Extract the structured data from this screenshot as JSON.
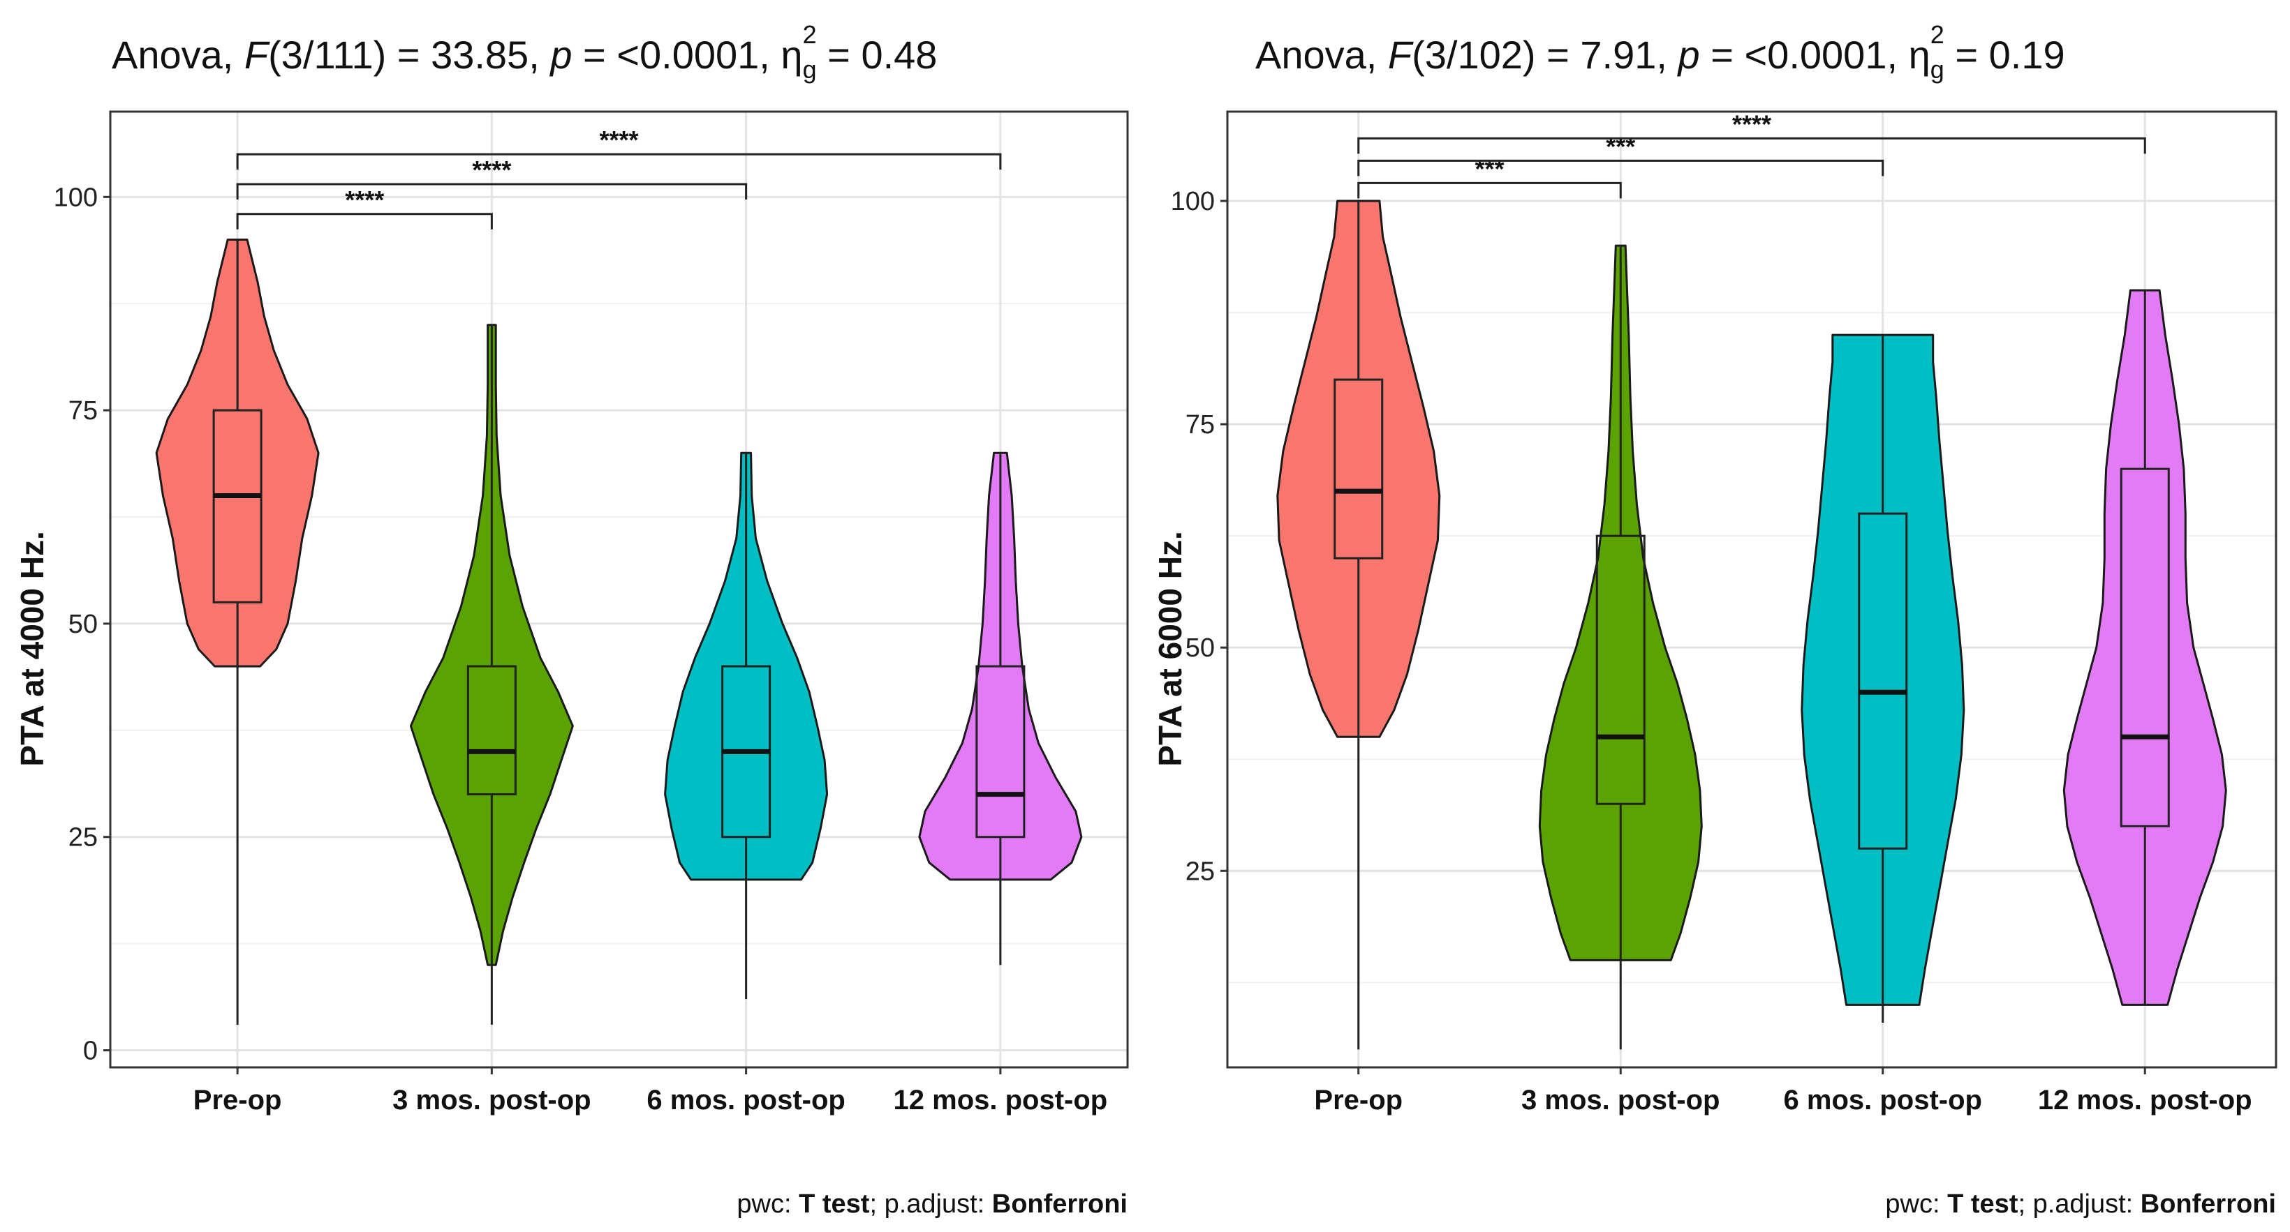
{
  "chart_data": [
    {
      "type": "violin",
      "title": "Anova, F(3/111) = 33.85, p = <0.0001, ηg2 = 0.48",
      "title_parts": {
        "prefix": "Anova, ",
        "F": "F",
        "df": "(3/111) = 33.85, ",
        "p": "p",
        "p_value": " = <0.0001, ",
        "eta": "η",
        "eta_sub": "g",
        "eta_sup": "2",
        "eta_value": " = 0.48"
      },
      "ylabel": "PTA at 4000 Hz.",
      "xlabel": "",
      "ylim": [
        -2,
        110
      ],
      "yticks": [
        0,
        25,
        50,
        75,
        100
      ],
      "categories": [
        "Pre-op",
        "3 mos. post-op",
        "6 mos. post-op",
        "12 mos. post-op"
      ],
      "colors": [
        "#F8766D",
        "#5BA300",
        "#00BFC4",
        "#E27BF5"
      ],
      "violins": [
        {
          "min": 45,
          "max": 95,
          "profile": [
            [
              45,
              0.28
            ],
            [
              47,
              0.48
            ],
            [
              50,
              0.62
            ],
            [
              55,
              0.72
            ],
            [
              60,
              0.8
            ],
            [
              65,
              0.92
            ],
            [
              70,
              1.0
            ],
            [
              74,
              0.86
            ],
            [
              78,
              0.62
            ],
            [
              82,
              0.45
            ],
            [
              86,
              0.33
            ],
            [
              90,
              0.25
            ],
            [
              95,
              0.12
            ]
          ]
        },
        {
          "min": 10,
          "max": 85,
          "profile": [
            [
              10,
              0.05
            ],
            [
              14,
              0.14
            ],
            [
              18,
              0.26
            ],
            [
              22,
              0.4
            ],
            [
              26,
              0.55
            ],
            [
              30,
              0.72
            ],
            [
              34,
              0.86
            ],
            [
              38,
              1.0
            ],
            [
              42,
              0.82
            ],
            [
              46,
              0.6
            ],
            [
              52,
              0.38
            ],
            [
              58,
              0.22
            ],
            [
              65,
              0.11
            ],
            [
              72,
              0.06
            ],
            [
              78,
              0.05
            ],
            [
              85,
              0.05
            ]
          ]
        },
        {
          "min": 20,
          "max": 70,
          "profile": [
            [
              20,
              0.68
            ],
            [
              22,
              0.82
            ],
            [
              26,
              0.92
            ],
            [
              30,
              1.0
            ],
            [
              34,
              0.97
            ],
            [
              38,
              0.88
            ],
            [
              42,
              0.78
            ],
            [
              46,
              0.63
            ],
            [
              50,
              0.45
            ],
            [
              55,
              0.26
            ],
            [
              60,
              0.12
            ],
            [
              65,
              0.07
            ],
            [
              70,
              0.06
            ]
          ]
        },
        {
          "min": 20,
          "max": 70,
          "profile": [
            [
              20,
              0.62
            ],
            [
              22,
              0.88
            ],
            [
              25,
              1.0
            ],
            [
              28,
              0.93
            ],
            [
              32,
              0.68
            ],
            [
              36,
              0.47
            ],
            [
              40,
              0.35
            ],
            [
              45,
              0.27
            ],
            [
              50,
              0.22
            ],
            [
              55,
              0.19
            ],
            [
              60,
              0.17
            ],
            [
              65,
              0.14
            ],
            [
              70,
              0.08
            ]
          ]
        }
      ],
      "boxes": [
        {
          "q1": 52.5,
          "median": 65,
          "q3": 75,
          "whisker_low": 3,
          "whisker_high": 95
        },
        {
          "q1": 30,
          "median": 35,
          "q3": 45,
          "whisker_low": 3,
          "whisker_high": 85
        },
        {
          "q1": 25,
          "median": 35,
          "q3": 45,
          "whisker_low": 6,
          "whisker_high": 70
        },
        {
          "q1": 25,
          "median": 30,
          "q3": 45,
          "whisker_low": 10,
          "whisker_high": 70
        }
      ],
      "comparisons": [
        {
          "from": 0,
          "to": 1,
          "y": 98,
          "label": "****"
        },
        {
          "from": 0,
          "to": 2,
          "y": 101.5,
          "label": "****"
        },
        {
          "from": 0,
          "to": 3,
          "y": 105,
          "label": "****"
        }
      ],
      "caption": {
        "pwc_label": "pwc: ",
        "pwc_value": "T test",
        "sep": "; p.adjust: ",
        "adjust_value": "Bonferroni"
      }
    },
    {
      "type": "violin",
      "title": "Anova, F(3/102) = 7.91, p = <0.0001, ηg2 = 0.19",
      "title_parts": {
        "prefix": "Anova, ",
        "F": "F",
        "df": "(3/102) = 7.91, ",
        "p": "p",
        "p_value": " = <0.0001, ",
        "eta": "η",
        "eta_sub": "g",
        "eta_sup": "2",
        "eta_value": " = 0.19"
      },
      "ylabel": "PTA at 6000 Hz.",
      "xlabel": "",
      "ylim": [
        3,
        110
      ],
      "yticks": [
        25,
        50,
        75,
        100
      ],
      "categories": [
        "Pre-op",
        "3 mos. post-op",
        "6 mos. post-op",
        "12 mos. post-op"
      ],
      "colors": [
        "#F8766D",
        "#5BA300",
        "#00BFC4",
        "#E27BF5"
      ],
      "violins": [
        {
          "min": 40,
          "max": 100,
          "profile": [
            [
              40,
              0.26
            ],
            [
              43,
              0.44
            ],
            [
              47,
              0.6
            ],
            [
              52,
              0.74
            ],
            [
              57,
              0.86
            ],
            [
              62,
              0.98
            ],
            [
              67,
              1.0
            ],
            [
              72,
              0.93
            ],
            [
              77,
              0.8
            ],
            [
              82,
              0.66
            ],
            [
              87,
              0.52
            ],
            [
              92,
              0.4
            ],
            [
              96,
              0.3
            ],
            [
              100,
              0.26
            ]
          ]
        },
        {
          "min": 15,
          "max": 95,
          "profile": [
            [
              15,
              0.62
            ],
            [
              18,
              0.74
            ],
            [
              22,
              0.86
            ],
            [
              26,
              0.96
            ],
            [
              30,
              1.0
            ],
            [
              34,
              0.98
            ],
            [
              38,
              0.92
            ],
            [
              42,
              0.82
            ],
            [
              46,
              0.7
            ],
            [
              50,
              0.55
            ],
            [
              55,
              0.4
            ],
            [
              60,
              0.28
            ],
            [
              66,
              0.2
            ],
            [
              72,
              0.15
            ],
            [
              78,
              0.12
            ],
            [
              85,
              0.1
            ],
            [
              90,
              0.08
            ],
            [
              95,
              0.06
            ]
          ]
        },
        {
          "min": 10,
          "max": 85,
          "profile": [
            [
              10,
              0.45
            ],
            [
              14,
              0.52
            ],
            [
              18,
              0.6
            ],
            [
              23,
              0.7
            ],
            [
              28,
              0.8
            ],
            [
              33,
              0.9
            ],
            [
              38,
              0.97
            ],
            [
              43,
              1.0
            ],
            [
              48,
              0.98
            ],
            [
              53,
              0.93
            ],
            [
              58,
              0.86
            ],
            [
              63,
              0.8
            ],
            [
              68,
              0.75
            ],
            [
              73,
              0.7
            ],
            [
              78,
              0.66
            ],
            [
              82,
              0.62
            ],
            [
              85,
              0.62
            ]
          ]
        },
        {
          "min": 10,
          "max": 90,
          "profile": [
            [
              10,
              0.28
            ],
            [
              14,
              0.4
            ],
            [
              18,
              0.54
            ],
            [
              22,
              0.68
            ],
            [
              26,
              0.84
            ],
            [
              30,
              0.96
            ],
            [
              34,
              1.0
            ],
            [
              38,
              0.95
            ],
            [
              42,
              0.84
            ],
            [
              46,
              0.72
            ],
            [
              50,
              0.6
            ],
            [
              55,
              0.52
            ],
            [
              60,
              0.5
            ],
            [
              65,
              0.5
            ],
            [
              70,
              0.48
            ],
            [
              75,
              0.42
            ],
            [
              80,
              0.34
            ],
            [
              85,
              0.25
            ],
            [
              90,
              0.18
            ]
          ]
        }
      ],
      "boxes": [
        {
          "q1": 60,
          "median": 67.5,
          "q3": 80,
          "whisker_low": 5,
          "whisker_high": 100
        },
        {
          "q1": 32.5,
          "median": 40,
          "q3": 62.5,
          "whisker_low": 5,
          "whisker_high": 95
        },
        {
          "q1": 27.5,
          "median": 45,
          "q3": 65,
          "whisker_low": 8,
          "whisker_high": 85
        },
        {
          "q1": 30,
          "median": 40,
          "q3": 70,
          "whisker_low": 10,
          "whisker_high": 90
        }
      ],
      "comparisons": [
        {
          "from": 0,
          "to": 1,
          "y": 102,
          "label": "***"
        },
        {
          "from": 0,
          "to": 2,
          "y": 104.5,
          "label": "***"
        },
        {
          "from": 0,
          "to": 3,
          "y": 107,
          "label": "****"
        }
      ],
      "caption": {
        "pwc_label": "pwc: ",
        "pwc_value": "T test",
        "sep": "; p.adjust: ",
        "adjust_value": "Bonferroni"
      }
    }
  ]
}
